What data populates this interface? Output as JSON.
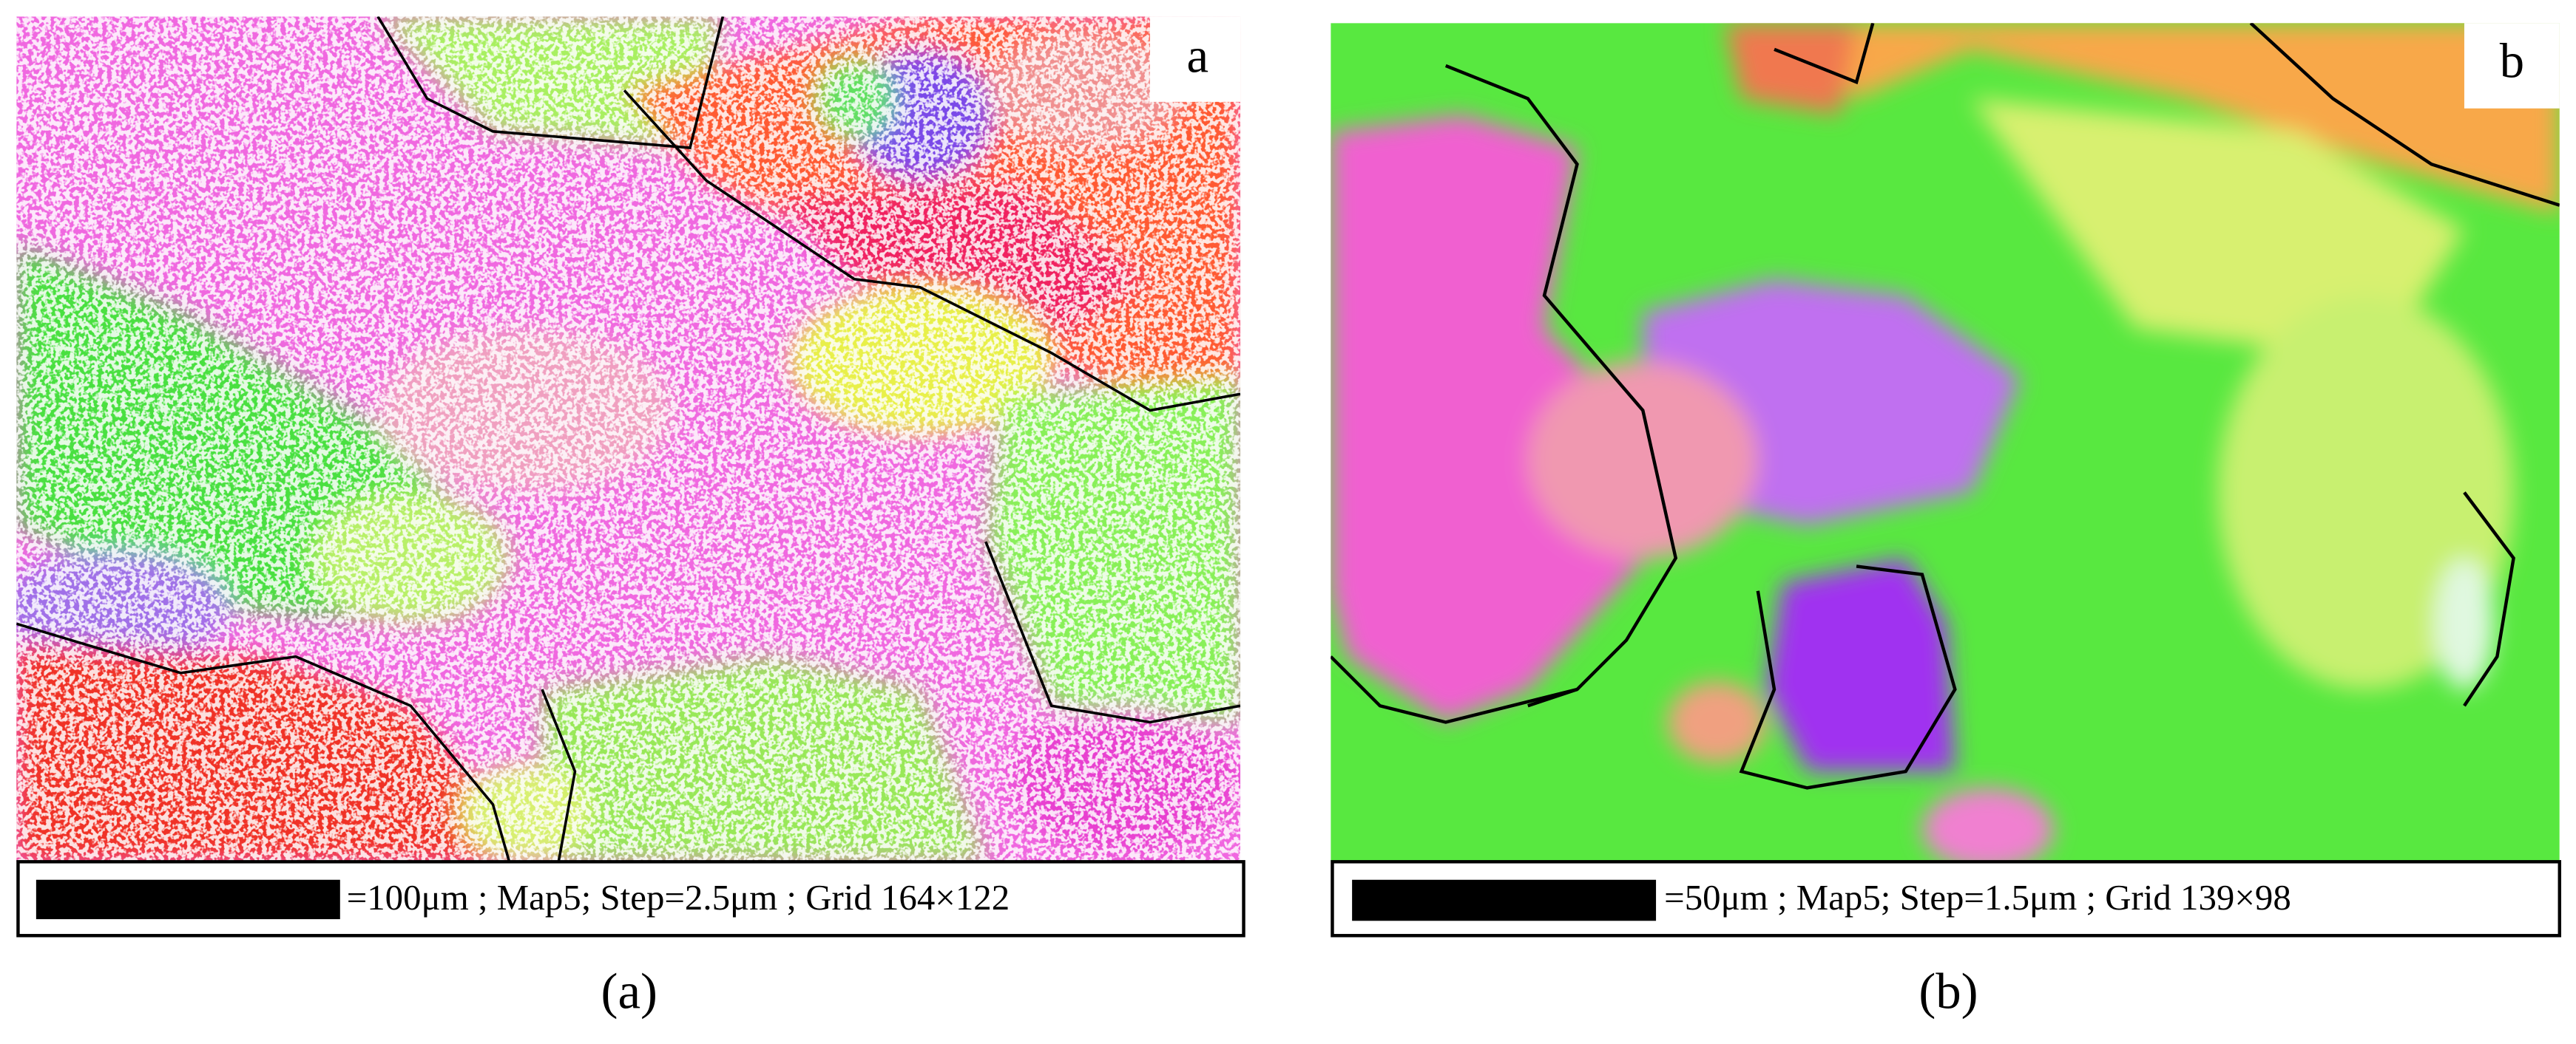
{
  "panels": [
    {
      "label": "a",
      "scale_text": "=100μm ; Map5; Step=2.5μm ; Grid 164×122",
      "caption": "(a)"
    },
    {
      "label": "b",
      "scale_text": "=50μm ; Map5; Step=1.5μm ; Grid 139×98",
      "caption": "(b)"
    }
  ]
}
